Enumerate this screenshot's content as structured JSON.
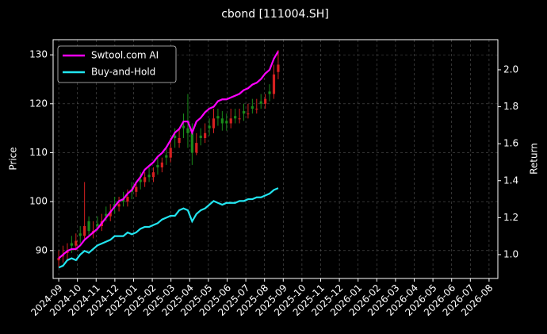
{
  "chart_data": {
    "type": "candlestick",
    "title": "cbond [111004.SH]",
    "ylabel": "Price",
    "y2label": "Return",
    "x": [
      0,
      0.23,
      0.46,
      0.69,
      0.92,
      1.15,
      1.38,
      1.61,
      1.84,
      2.07,
      2.3,
      2.53,
      2.76,
      2.99,
      3.22,
      3.45,
      3.68,
      3.91,
      4.14,
      4.37,
      4.6,
      4.83,
      5.06,
      5.29,
      5.52,
      5.75,
      5.98,
      6.21,
      6.44,
      6.67,
      6.9,
      7.13,
      7.36,
      7.59,
      7.82,
      8.05,
      8.28,
      8.51,
      8.74,
      8.97,
      9.2,
      9.43,
      9.66,
      9.89,
      10.12,
      10.35,
      10.58,
      10.81,
      11.04,
      11.27,
      11.5,
      11.73
    ],
    "open": [
      88,
      88.8,
      89.5,
      91.5,
      91,
      93.5,
      93,
      96,
      93.5,
      95.5,
      95,
      97.5,
      97,
      99.5,
      99,
      100.5,
      100,
      102.5,
      102,
      104.5,
      104,
      105.5,
      105,
      107.5,
      107,
      109.5,
      109,
      113.5,
      112,
      115.5,
      115,
      114,
      110,
      113.5,
      113,
      115.5,
      115,
      117.5,
      117,
      116.5,
      116,
      117.5,
      117,
      118.5,
      118,
      119.5,
      119,
      120.5,
      120,
      122.5,
      122,
      126.5
    ],
    "high": [
      90,
      91,
      91.5,
      93,
      93.5,
      95,
      104,
      97,
      96,
      97,
      97.5,
      99,
      99.5,
      101,
      101,
      102,
      102.5,
      104,
      104,
      106,
      106,
      107,
      107,
      109,
      109,
      111,
      113,
      115,
      115,
      118,
      122,
      116,
      114,
      115,
      116,
      117,
      119,
      119,
      118.5,
      118,
      119,
      119,
      119,
      120,
      120,
      121,
      121,
      122,
      122,
      124,
      128,
      131
    ],
    "low": [
      86.5,
      87.5,
      88,
      89.5,
      90,
      91.5,
      92,
      93,
      92.5,
      94,
      94,
      96,
      96,
      97.5,
      98,
      99,
      99,
      100.5,
      101,
      102.5,
      103,
      104,
      104,
      105.5,
      106,
      107.5,
      108,
      111,
      111,
      113,
      111,
      107.5,
      109.5,
      111.5,
      112,
      113.5,
      114,
      115.5,
      114.5,
      114.5,
      115,
      116,
      116,
      116.5,
      117,
      118,
      118,
      119,
      119,
      120.5,
      121,
      125
    ],
    "close": [
      88.5,
      89,
      90,
      91,
      92,
      93,
      95,
      94,
      94,
      95,
      96,
      97,
      98,
      99,
      99.5,
      100,
      101,
      102,
      103,
      104,
      105,
      105,
      106,
      107,
      108,
      109,
      111,
      113,
      113,
      115,
      114,
      110,
      112,
      113,
      114,
      115,
      117,
      117,
      116,
      116,
      117,
      117,
      117,
      118,
      118,
      119,
      119,
      120,
      121,
      122,
      126,
      128
    ],
    "up_color": "#d62020",
    "down_color": "#1a8a1a",
    "series": [
      {
        "name": "Swtool.com AI",
        "color": "#ff00ff",
        "axis": "y2",
        "values": [
          0.98,
          1.0,
          1.02,
          1.03,
          1.03,
          1.05,
          1.08,
          1.1,
          1.12,
          1.14,
          1.17,
          1.2,
          1.23,
          1.26,
          1.29,
          1.3,
          1.33,
          1.35,
          1.39,
          1.42,
          1.46,
          1.48,
          1.5,
          1.53,
          1.55,
          1.58,
          1.62,
          1.66,
          1.68,
          1.72,
          1.72,
          1.66,
          1.72,
          1.74,
          1.77,
          1.79,
          1.8,
          1.83,
          1.84,
          1.84,
          1.85,
          1.86,
          1.87,
          1.89,
          1.9,
          1.92,
          1.93,
          1.95,
          1.98,
          2.0,
          2.06,
          2.1
        ]
      },
      {
        "name": "Buy-and-Hold",
        "color": "#22e5f0",
        "axis": "y2",
        "values": [
          0.93,
          0.94,
          0.97,
          0.98,
          0.97,
          1.0,
          1.02,
          1.01,
          1.03,
          1.05,
          1.06,
          1.07,
          1.08,
          1.1,
          1.1,
          1.1,
          1.12,
          1.11,
          1.12,
          1.14,
          1.15,
          1.15,
          1.16,
          1.17,
          1.19,
          1.2,
          1.21,
          1.21,
          1.24,
          1.25,
          1.24,
          1.18,
          1.22,
          1.24,
          1.25,
          1.27,
          1.29,
          1.28,
          1.27,
          1.28,
          1.28,
          1.28,
          1.29,
          1.29,
          1.3,
          1.3,
          1.31,
          1.31,
          1.32,
          1.33,
          1.35,
          1.36
        ]
      }
    ],
    "xlim": [
      -0.3,
      23.47
    ],
    "xticks": [
      {
        "value": 0,
        "label": "2024-09"
      },
      {
        "value": 1,
        "label": "2024-10"
      },
      {
        "value": 2,
        "label": "2024-11"
      },
      {
        "value": 3,
        "label": "2024-12"
      },
      {
        "value": 4,
        "label": "2025-01"
      },
      {
        "value": 5,
        "label": "2025-02"
      },
      {
        "value": 6,
        "label": "2025-03"
      },
      {
        "value": 7,
        "label": "2025-04"
      },
      {
        "value": 8,
        "label": "2025-05"
      },
      {
        "value": 9,
        "label": "2025-06"
      },
      {
        "value": 10,
        "label": "2025-07"
      },
      {
        "value": 11,
        "label": "2025-08"
      },
      {
        "value": 12,
        "label": "2025-09"
      },
      {
        "value": 13,
        "label": "2025-10"
      },
      {
        "value": 14,
        "label": "2025-11"
      },
      {
        "value": 15,
        "label": "2025-12"
      },
      {
        "value": 16,
        "label": "2026-01"
      },
      {
        "value": 17,
        "label": "2026-02"
      },
      {
        "value": 18,
        "label": "2026-03"
      },
      {
        "value": 19,
        "label": "2026-04"
      },
      {
        "value": 20,
        "label": "2026-05"
      },
      {
        "value": 21,
        "label": "2026-06"
      },
      {
        "value": 22,
        "label": "2026-07"
      },
      {
        "value": 23,
        "label": "2026-08"
      }
    ],
    "ylim": [
      84.3,
      133.1
    ],
    "yticks": [
      90,
      100,
      110,
      120,
      130
    ],
    "y2lim": [
      0.871,
      2.163
    ],
    "y2ticks": [
      {
        "value": 1,
        "label": "1.0"
      },
      1.2,
      1.4,
      1.6,
      1.8,
      {
        "value": 2,
        "label": "2.0"
      }
    ],
    "grid": true,
    "legend": "upper left"
  }
}
